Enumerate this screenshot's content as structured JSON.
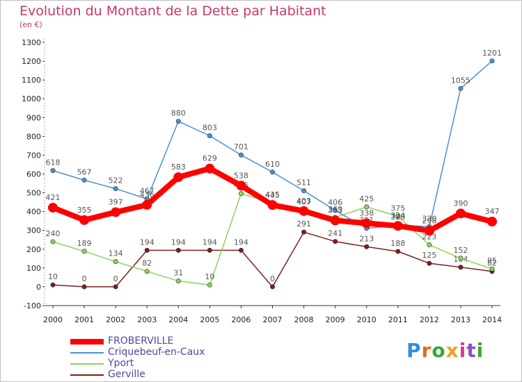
{
  "header": {
    "title": "Evolution du Montant de la Dette par Habitant",
    "subtitle": "(en €)"
  },
  "logo": {
    "letters": [
      "P",
      "r",
      "o",
      "x",
      "i",
      "t",
      "i"
    ],
    "colors": [
      "#2f8fd8",
      "#e06a1a",
      "#3aa53a",
      "#f0a21e",
      "#d63c8a",
      "#8a4fd0",
      "#3aa53a"
    ]
  },
  "chart_data": {
    "type": "line",
    "title": "Evolution du Montant de la Dette par Habitant",
    "subtitle": "(en €)",
    "xlabel": "",
    "ylabel": "",
    "x": [
      2000,
      2001,
      2002,
      2003,
      2004,
      2005,
      2006,
      2007,
      2008,
      2009,
      2010,
      2011,
      2012,
      2013,
      2014
    ],
    "ylim": [
      -100,
      1300
    ],
    "yticks": [
      -100,
      0,
      100,
      200,
      300,
      400,
      500,
      600,
      700,
      800,
      900,
      1000,
      1100,
      1200,
      1300
    ],
    "grid": false,
    "legend_position": "bottom-left",
    "series": [
      {
        "name": "FROBERVILLE",
        "color": "#ff0000",
        "values": [
          421,
          355,
          397,
          436,
          583,
          629,
          538,
          435,
          403,
          353,
          338,
          324,
          298,
          390,
          347
        ]
      },
      {
        "name": "Criquebeuf-en-Caux",
        "color": "#4a8fd4",
        "values": [
          618,
          567,
          522,
          467,
          880,
          803,
          701,
          610,
          511,
          406,
          311,
          328,
          320,
          1055,
          1201
        ]
      },
      {
        "name": "Yport",
        "color": "#8cd35a",
        "values": [
          240,
          189,
          134,
          82,
          31,
          10,
          496,
          445,
          407,
          369,
          425,
          375,
          223,
          152,
          95
        ]
      },
      {
        "name": "Gerville",
        "color": "#7b1e1e",
        "values": [
          10,
          0,
          0,
          194,
          194,
          194,
          194,
          0,
          291,
          241,
          213,
          188,
          125,
          104,
          82
        ]
      }
    ]
  }
}
